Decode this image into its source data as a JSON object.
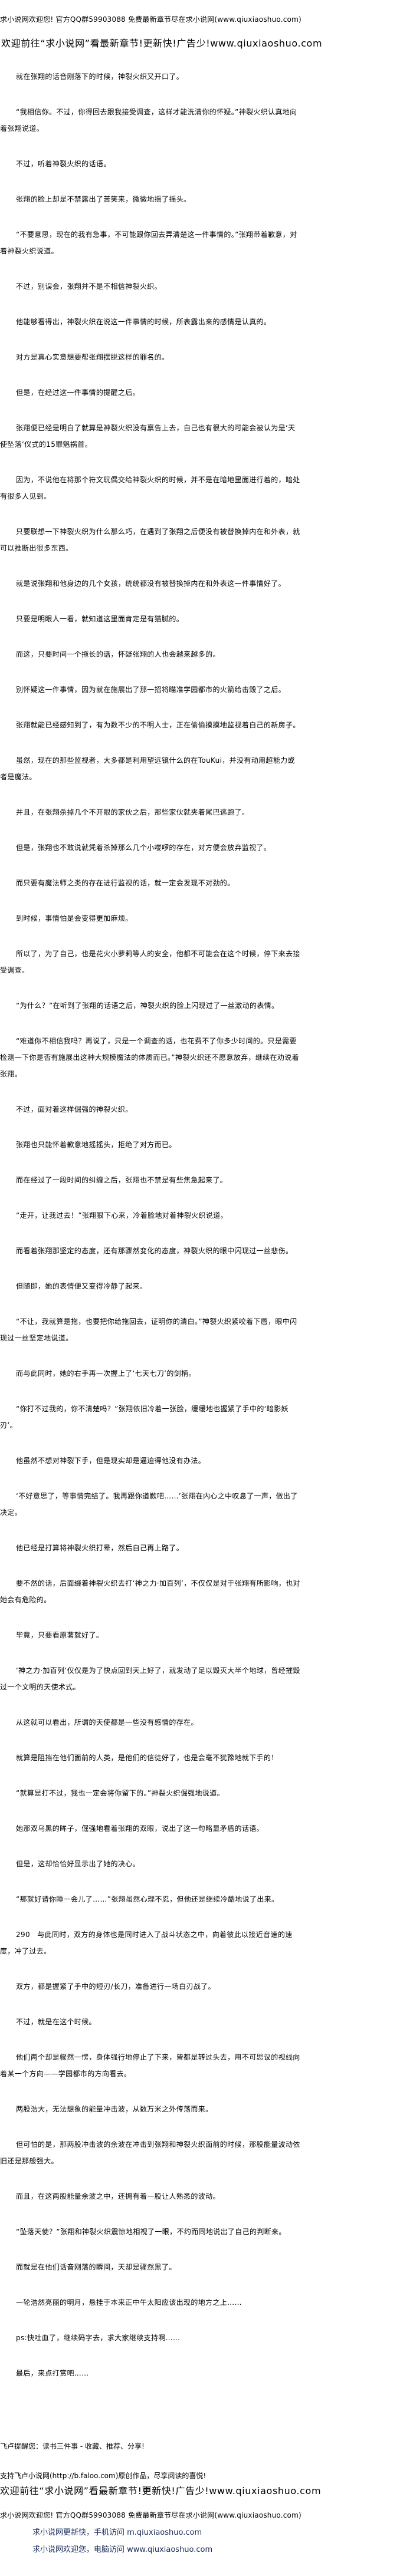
{
  "header": {
    "site_notice": "求小说网欢迎您! 官方QQ群59903088 免费最新章节尽在求小说网(www.qiuxiaoshuo.com)",
    "promo": "欢迎前往“求小说网”看最新章节!更新快!广告少!www.qiuxiaoshuo.com"
  },
  "paragraphs": [
    "就在张翔的话音刚落下的时候，神裂火织又开口了。",
    "“我相信你。不过，你得回去跟我接受调查，这样才能洗清你的怀疑。”神裂火织认真地向着张翔说道。",
    "不过，听着神裂火织的话语。",
    "张翔的脸上却是不禁露出了苦笑来，微微地摇了摇头。",
    "“不要意思，现在的我有急事，不可能跟你回去弄清楚这一件事情的。”张翔带着歉意，对着神裂火织说道。",
    "不过，别误会，张翔并不是不相信神裂火织。",
    "他能够看得出，神裂火织在说这一件事情的时候，所表露出来的感情是认真的。",
    "对方是真心实意想要帮张翔摆脱这样的罪名的。",
    "但是，在经过这一件事情的提醒之后。",
    "张翔便已经是明白了就算是神裂火织没有禀告上去，自己也有很大的可能会被认为是‘天使坠落’仪式的15罪魁祸首。",
    "因为，不说他在将那个符文玩偶交给神裂火织的时候，并不是在暗地里面进行着的，暗处有很多人见到。",
    "只要联想一下神裂火织为什么那么巧，在遇到了张翔之后便没有被替换掉内在和外表，就可以推断出很多东西。",
    "就是说张翔和他身边的几个女孩，统统都没有被替换掉内在和外表这一件事情好了。",
    "只要是明眼人一看，就知道这里面肯定是有猫腻的。",
    "而这，只要时间一个拖长的话，怀疑张翔的人也会越来越多的。",
    "别怀疑这一件事情，因为就在施展出了那一招将瞄准学园都市的火箭给击毁了之后。",
    "张翔就能已经感知到了，有为数不少的不明人士，正在偷偷摸摸地监视着自己的新房子。",
    "虽然，现在的那些监视者，大多都是利用望远镜什么的在TouKui，并没有动用超能力或者是魔法。",
    "并且，在张翔杀掉几个不开眼的家伙之后，那些家伙就夹着尾巴逃跑了。",
    "但是，张翔也不敢说就凭着杀掉那么几个小喽啰的存在，对方便会放弃监视了。",
    "而只要有魔法师之类的存在进行监视的话，就一定会发现不对劲的。",
    "到时候，事情怕是会变得更加麻烦。",
    "所以了，为了自己，也是花火小萝莉等人的安全，他都不可能会在这个时候，停下来去接受调查。",
    "“为什么？”在听到了张翔的话语之后，神裂火织的脸上闪现过了一丝激动的表情。",
    "“难道你不相信我吗？再说了，只是一个调查的话，也花费不了你多少时间的。只是需要检测一下你是否有施展出这种大规模魔法的体质而已。”神裂火织还不愿意放弃，继续在劝说着张翔。",
    "不过，面对着这样倔强的神裂火织。",
    "张翔也只能怀着歉意地摇摇头，拒绝了对方而已。",
    "而在经过了一段时间的纠缠之后，张翔也不禁是有些焦急起来了。",
    "“走开，让我过去！”张翔狠下心来，冷着脸地对着神裂火织说道。",
    "而看着张翔那坚定的态度，还有那骤然变化的态度，神裂火织的眼中闪现过一丝悲伤。",
    "但随即，她的表情便又变得冷静了起来。",
    "“不让，我就算是拖，也要把你给拖回去，证明你的清白。”神裂火织紧咬着下唇，眼中闪现过一丝坚定地说道。",
    "而与此同时，她的右手再一次握上了‘七天七刀’的剑柄。",
    "“你打不过我的，你不清楚吗？”张翔依旧冷着一张脸，缓缓地也握紧了手中的‘暗影妖刃’。",
    "他虽然不想对神裂下手，但是现实却是逼迫得他没有办法。",
    "‘不好意思了，等事情完结了。我再跟你道歉吧……’张翔在内心之中叹息了一声，做出了决定。",
    "他已经是打算将神裂火织打晕，然后自己再上路了。",
    "要不然的话，后面缀着神裂火织去打‘神之力·加百列’，不仅仅是对于张翔有所影响，也对她会有危险的。",
    "毕竟，只要看原著就好了。",
    "‘神之力·加百列’仅仅是为了快点回到天上好了，就发动了足以毁灭大半个地球，曾经摧毁过一个文明的天使术式。",
    "从这就可以看出，所谓的天使都是一些没有感情的存在。",
    "就算是阻挡在他们面前的人类，是他们的信徒好了，也是会毫不犹豫地就下手的！",
    "“就算是打不过，我也一定会将你留下的。”神裂火织倔强地说道。",
    "她那双乌黑的眸子，倔强地看着张翔的双眼，说出了这一句略显矛盾的话语。",
    "但是，这却恰恰好显示出了她的决心。",
    "“那就好请你睡一会儿了……”张翔虽然心理不忍，但他还是继续冷酷地说了出来。",
    "290　与此同时，双方的身体也是同时进入了战斗状态之中，向着彼此以接近音速的速度，冲了过去。",
    "双方，都是握紧了手中的短刃/长刀，准备进行一场白刃战了。",
    "不过，就是在这个时候。",
    "他们两个却是骤然一愣，身体强行地停止了下来，皆都是转过头去，用不可思议的视线向着某一个方向——学园都市的方向看去。",
    "两股浩大，无法想象的能量冲击波，从数万米之外传荡而来。",
    "但可怕的是，那两股冲击波的余波在冲击到张翔和神裂火织面前的时候，那股能量波动依旧还是那般强大。",
    "而且，在这两股能量余波之中，还拥有着一股让人熟悉的波动。",
    "“坠落天使？”张翔和神裂火织震惊地相视了一眼，不约而同地说出了自己的判断来。",
    "而就是在他们话音刚落的瞬间，天却是骤然黑了。",
    "一轮浩然亮丽的明月，悬挂于本来正中午太阳应该出现的地方之上……",
    "ps:快吐血了，继续码字去，求大家继续支持啊……",
    "最后，来点打赏吧……"
  ],
  "footer": {
    "reminder": "飞卢提醒您：读书三件事 - 收藏、推荐、分享!",
    "support": "支持飞卢小说网(http://b.faloo.com)原创作品，尽享阅读的喜悦!",
    "promo": "欢迎前往“求小说网”看最新章节!更新快!广告少!www.qiuxiaoshuo.com",
    "site_notice": "求小说网欢迎您! 官方QQ群59903088 免费最新章节尽在求小说网(www.qiuxiaoshuo.com)",
    "mobile": "求小说网更新快，手机访问 m.qiuxiaoshuo.com",
    "desktop": "求小说网欢迎您，电脑访问 www.qiuxiaoshuo.com"
  }
}
